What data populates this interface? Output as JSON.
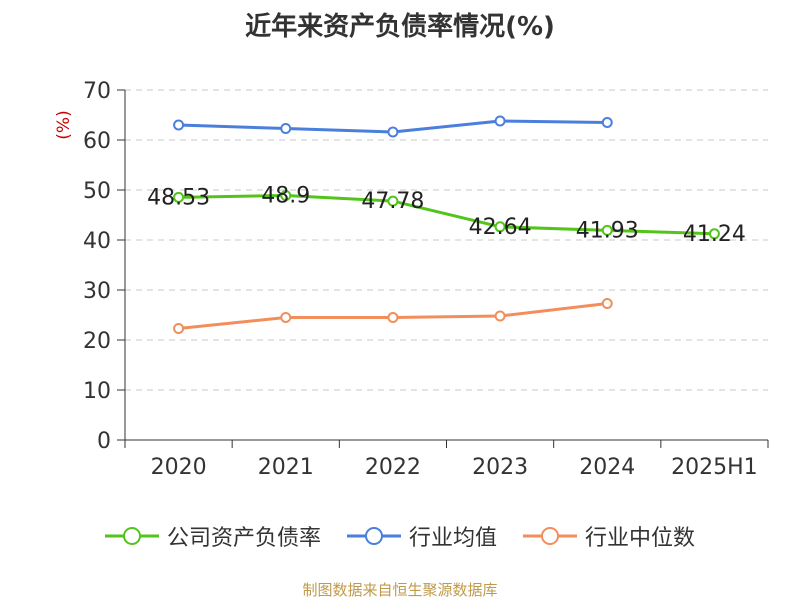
{
  "source_note": "制图数据来自恒生聚源数据库",
  "chart_data": {
    "type": "line",
    "title": "近年来资产负债率情况(%)",
    "ylabel": "(%)",
    "xlabel": "",
    "categories": [
      "2020",
      "2021",
      "2022",
      "2023",
      "2024",
      "2025H1"
    ],
    "ylim": [
      0,
      70
    ],
    "yticks": [
      0,
      10,
      20,
      30,
      40,
      50,
      60,
      70
    ],
    "grid": true,
    "legend_position": "bottom",
    "series": [
      {
        "name": "公司资产负债率",
        "color": "#52c41a",
        "values": [
          48.53,
          48.9,
          47.78,
          42.64,
          41.93,
          41.24
        ],
        "labels": [
          "48.53",
          "48.9",
          "47.78",
          "42.64",
          "41.93",
          "41.24"
        ]
      },
      {
        "name": "行业均值",
        "color": "#4a7fdc",
        "values": [
          63.0,
          62.3,
          61.6,
          63.8,
          63.5,
          null
        ]
      },
      {
        "name": "行业中位数",
        "color": "#f28e5b",
        "values": [
          22.3,
          24.5,
          24.5,
          24.8,
          27.3,
          null
        ]
      }
    ]
  }
}
